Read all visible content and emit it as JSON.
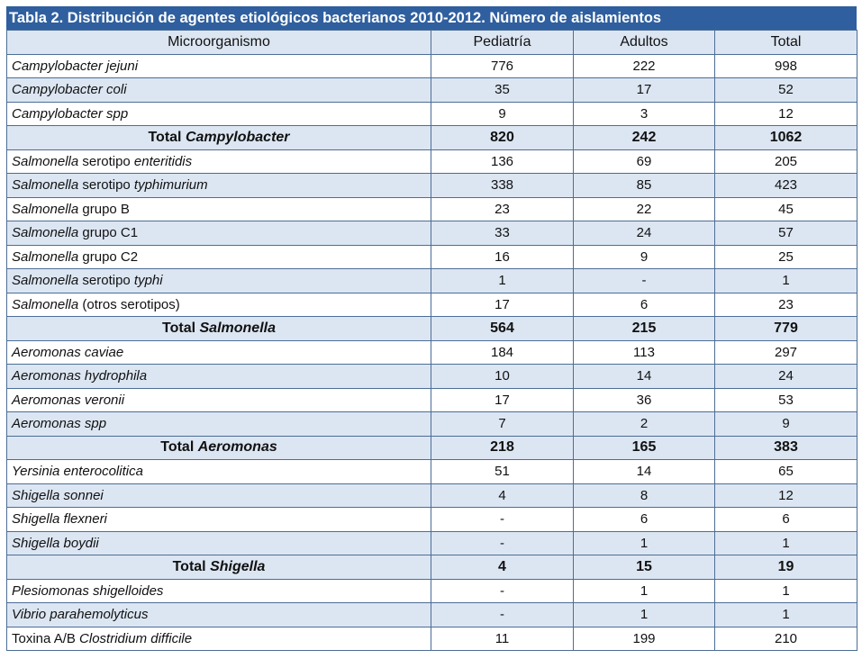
{
  "title": "Tabla 2. Distribución de agentes etiológicos bacterianos 2010-2012. Número de aislamientos",
  "headers": [
    "Microorganismo",
    "Pediatría",
    "Adultos",
    "Total"
  ],
  "rows": [
    {
      "type": "odd",
      "name_pre": "",
      "name_it": "Campylobacter jejuni",
      "name_post": "",
      "ped": "776",
      "adu": "222",
      "tot": "998"
    },
    {
      "type": "even",
      "name_pre": "",
      "name_it": "Campylobacter coli",
      "name_post": "",
      "ped": "35",
      "adu": "17",
      "tot": "52"
    },
    {
      "type": "odd",
      "name_pre": "",
      "name_it": "Campylobacter spp",
      "name_post": "",
      "ped": "9",
      "adu": "3",
      "tot": "12"
    },
    {
      "type": "total",
      "name_pre": "Total ",
      "name_it": "Campylobacter",
      "name_post": "",
      "ped": "820",
      "adu": "242",
      "tot": "1062"
    },
    {
      "type": "odd",
      "name_pre": "",
      "name_it": "Salmonella",
      "name_post": " serotipo ",
      "name_it2": "enteritidis",
      "ped": "136",
      "adu": "69",
      "tot": "205"
    },
    {
      "type": "even",
      "name_pre": "",
      "name_it": "Salmonella",
      "name_post": " serotipo ",
      "name_it2": "typhimurium",
      "ped": "338",
      "adu": "85",
      "tot": "423"
    },
    {
      "type": "odd",
      "name_pre": "",
      "name_it": "Salmonella",
      "name_post": " grupo B",
      "ped": "23",
      "adu": "22",
      "tot": "45"
    },
    {
      "type": "even",
      "name_pre": "",
      "name_it": "Salmonella",
      "name_post": " grupo C1",
      "ped": "33",
      "adu": "24",
      "tot": "57"
    },
    {
      "type": "odd",
      "name_pre": "",
      "name_it": "Salmonella",
      "name_post": " grupo C2",
      "ped": "16",
      "adu": "9",
      "tot": "25"
    },
    {
      "type": "even",
      "name_pre": "",
      "name_it": "Salmonella",
      "name_post": " serotipo ",
      "name_it2": "typhi",
      "ped": "1",
      "adu": "-",
      "tot": "1"
    },
    {
      "type": "odd",
      "name_pre": "",
      "name_it": "Salmonella",
      "name_post": " (otros serotipos)",
      "ped": "17",
      "adu": "6",
      "tot": "23"
    },
    {
      "type": "total",
      "name_pre": "Total ",
      "name_it": "Salmonella",
      "name_post": "",
      "ped": "564",
      "adu": "215",
      "tot": "779"
    },
    {
      "type": "odd",
      "name_pre": "",
      "name_it": "Aeromonas caviae",
      "name_post": "",
      "ped": "184",
      "adu": "113",
      "tot": "297"
    },
    {
      "type": "even",
      "name_pre": "",
      "name_it": "Aeromonas hydrophila",
      "name_post": "",
      "ped": "10",
      "adu": "14",
      "tot": "24"
    },
    {
      "type": "odd",
      "name_pre": "",
      "name_it": "Aeromonas veronii",
      "name_post": "",
      "ped": "17",
      "adu": "36",
      "tot": "53"
    },
    {
      "type": "even",
      "name_pre": "",
      "name_it": "Aeromonas spp",
      "name_post": "",
      "ped": "7",
      "adu": "2",
      "tot": "9"
    },
    {
      "type": "total",
      "name_pre": "Total ",
      "name_it": "Aeromonas",
      "name_post": "",
      "ped": "218",
      "adu": "165",
      "tot": "383"
    },
    {
      "type": "odd",
      "name_pre": "",
      "name_it": "Yersinia enterocolitica",
      "name_post": "",
      "ped": "51",
      "adu": "14",
      "tot": "65"
    },
    {
      "type": "even",
      "name_pre": "",
      "name_it": "Shigella sonnei",
      "name_post": "",
      "ped": "4",
      "adu": "8",
      "tot": "12"
    },
    {
      "type": "odd",
      "name_pre": "",
      "name_it": "Shigella flexneri",
      "name_post": "",
      "ped": "-",
      "adu": "6",
      "tot": "6"
    },
    {
      "type": "even",
      "name_pre": "",
      "name_it": "Shigella boydii",
      "name_post": "",
      "ped": "-",
      "adu": "1",
      "tot": "1"
    },
    {
      "type": "total",
      "name_pre": "Total ",
      "name_it": "Shigella",
      "name_post": "",
      "ped": "4",
      "adu": "15",
      "tot": "19"
    },
    {
      "type": "odd",
      "name_pre": "",
      "name_it": "Plesiomonas shigelloides",
      "name_post": "",
      "ped": "-",
      "adu": "1",
      "tot": "1"
    },
    {
      "type": "even",
      "name_pre": "",
      "name_it": "Vibrio parahemolyticus",
      "name_post": "",
      "ped": "-",
      "adu": "1",
      "tot": "1"
    },
    {
      "type": "odd",
      "name_pre": "Toxina A/B ",
      "name_it": "Clostridium difficile",
      "name_post": "",
      "ped": "11",
      "adu": "199",
      "tot": "210"
    }
  ],
  "colors": {
    "title_bg": "#2f5f9e",
    "band": "#dce6f2",
    "border": "#4d6d95"
  }
}
